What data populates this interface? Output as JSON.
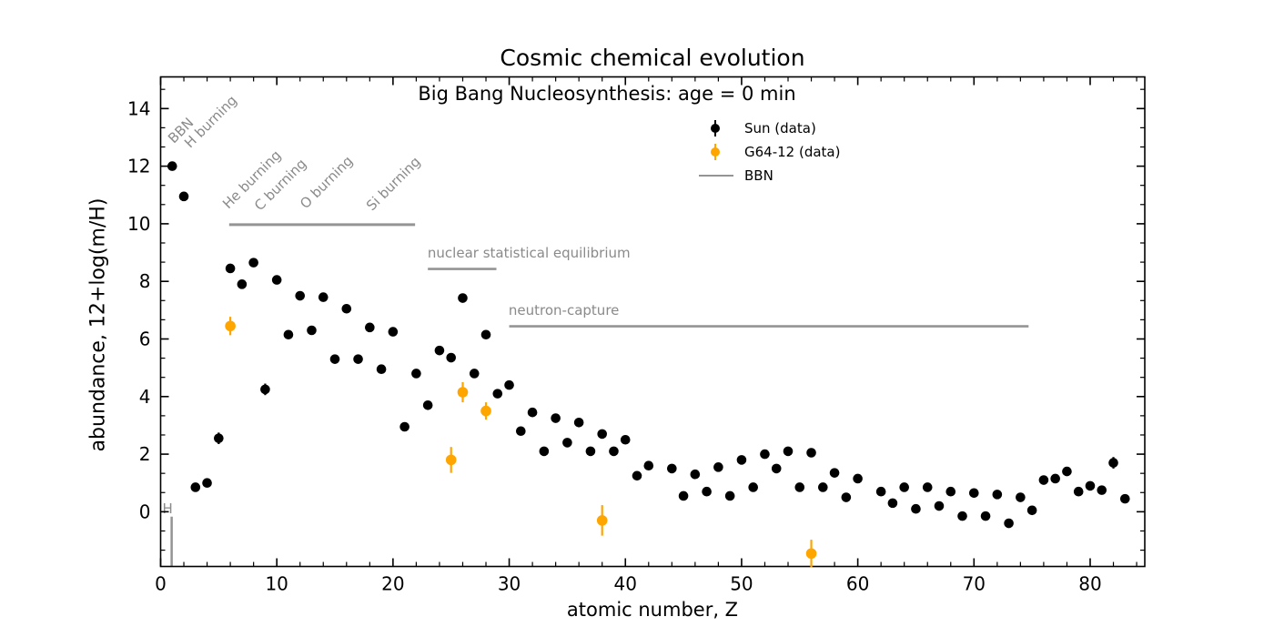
{
  "chart_data": {
    "type": "scatter",
    "title": "Cosmic chemical evolution",
    "subtitle": "Big Bang Nucleosynthesis: age = 0 min",
    "xlabel": "atomic number, Z",
    "ylabel": "abundance, 12+log(m/H)",
    "xlim": [
      0,
      84.7
    ],
    "ylim": [
      -1.9,
      15.1
    ],
    "x_ticks": [
      0,
      10,
      20,
      30,
      40,
      50,
      60,
      70,
      80
    ],
    "x_minor_step": 2,
    "y_ticks": [
      0,
      2,
      4,
      6,
      8,
      10,
      12,
      14
    ],
    "y_minor_step": 0.6667,
    "grid": false,
    "legend_position": "upper-right frameless",
    "colors": {
      "sun": "#000000",
      "g64": "#ffa500",
      "annotation_text": "#8a8a8a",
      "annotation_line": "#949494",
      "axis": "#000000"
    },
    "series": [
      {
        "name": "Sun (data)",
        "marker": "circle",
        "color": "#000000",
        "points": [
          [
            1,
            12.0,
            0
          ],
          [
            2,
            10.95,
            0
          ],
          [
            3,
            0.85,
            0
          ],
          [
            4,
            1.0,
            0
          ],
          [
            5,
            2.55,
            0.2
          ],
          [
            6,
            8.45,
            0
          ],
          [
            7,
            7.9,
            0
          ],
          [
            8,
            8.65,
            0
          ],
          [
            9,
            4.25,
            0.2
          ],
          [
            10,
            8.05,
            0
          ],
          [
            11,
            6.15,
            0
          ],
          [
            12,
            7.5,
            0
          ],
          [
            13,
            6.3,
            0
          ],
          [
            14,
            7.45,
            0
          ],
          [
            15,
            5.3,
            0
          ],
          [
            16,
            7.05,
            0
          ],
          [
            17,
            5.3,
            0
          ],
          [
            18,
            6.4,
            0
          ],
          [
            19,
            4.95,
            0
          ],
          [
            20,
            6.25,
            0
          ],
          [
            21,
            2.95,
            0
          ],
          [
            22,
            4.8,
            0
          ],
          [
            23,
            3.7,
            0
          ],
          [
            24,
            5.6,
            0
          ],
          [
            25,
            5.35,
            0
          ],
          [
            26,
            7.42,
            0.1
          ],
          [
            27,
            4.8,
            0
          ],
          [
            28,
            6.15,
            0
          ],
          [
            29,
            4.1,
            0
          ],
          [
            30,
            4.4,
            0
          ],
          [
            31,
            2.8,
            0
          ],
          [
            32,
            3.45,
            0
          ],
          [
            33,
            2.1,
            0
          ],
          [
            34,
            3.25,
            0
          ],
          [
            35,
            2.4,
            0
          ],
          [
            36,
            3.1,
            0
          ],
          [
            37,
            2.1,
            0
          ],
          [
            38,
            2.7,
            0
          ],
          [
            39,
            2.1,
            0
          ],
          [
            40,
            2.5,
            0
          ],
          [
            41,
            1.25,
            0
          ],
          [
            42,
            1.6,
            0
          ],
          [
            44,
            1.5,
            0
          ],
          [
            45,
            0.55,
            0
          ],
          [
            46,
            1.3,
            0
          ],
          [
            47,
            0.7,
            0
          ],
          [
            48,
            1.55,
            0
          ],
          [
            49,
            0.55,
            0
          ],
          [
            50,
            1.8,
            0
          ],
          [
            51,
            0.85,
            0
          ],
          [
            52,
            2.0,
            0
          ],
          [
            53,
            1.5,
            0
          ],
          [
            54,
            2.1,
            0
          ],
          [
            55,
            0.85,
            0
          ],
          [
            56,
            2.05,
            0
          ],
          [
            57,
            0.85,
            0
          ],
          [
            58,
            1.35,
            0
          ],
          [
            59,
            0.5,
            0
          ],
          [
            60,
            1.15,
            0
          ],
          [
            62,
            0.7,
            0
          ],
          [
            63,
            0.3,
            0
          ],
          [
            64,
            0.85,
            0
          ],
          [
            65,
            0.1,
            0
          ],
          [
            66,
            0.85,
            0
          ],
          [
            67,
            0.2,
            0
          ],
          [
            68,
            0.7,
            0
          ],
          [
            69,
            -0.15,
            0
          ],
          [
            70,
            0.65,
            0
          ],
          [
            71,
            -0.15,
            0
          ],
          [
            72,
            0.6,
            0
          ],
          [
            73,
            -0.4,
            0
          ],
          [
            74,
            0.5,
            0.15
          ],
          [
            75,
            0.05,
            0
          ],
          [
            76,
            1.1,
            0
          ],
          [
            77,
            1.15,
            0.12
          ],
          [
            78,
            1.4,
            0
          ],
          [
            79,
            0.7,
            0.15
          ],
          [
            80,
            0.9,
            0
          ],
          [
            81,
            0.75,
            0.15
          ],
          [
            82,
            1.7,
            0.2
          ],
          [
            83,
            0.45,
            0
          ]
        ]
      },
      {
        "name": "G64-12 (data)",
        "marker": "circle",
        "color": "#ffa500",
        "points": [
          [
            6,
            6.45,
            0.32
          ],
          [
            25,
            1.8,
            0.45
          ],
          [
            26,
            4.15,
            0.35
          ],
          [
            28,
            3.5,
            0.3
          ],
          [
            38,
            -0.3,
            0.53
          ],
          [
            56,
            -1.45,
            0.48
          ]
        ]
      },
      {
        "name": "BBN",
        "marker": "vline",
        "color": "#949494",
        "lines": [
          {
            "label": "H",
            "z": 0.95,
            "v_top": -0.17,
            "v_bottom": -1.9
          }
        ]
      }
    ],
    "annotations": {
      "stage_lines": [
        {
          "name": "burning-line",
          "z_from": 5.9,
          "z_to": 21.9,
          "v": 9.97,
          "width": 3
        },
        {
          "name": "nse-line",
          "z_from": 23.0,
          "z_to": 28.9,
          "v": 8.43,
          "width": 2.6
        },
        {
          "name": "neutron-capture-line",
          "z_from": 30.0,
          "z_to": 74.7,
          "v": 6.44,
          "width": 2.6
        }
      ],
      "rotated_labels": [
        {
          "text": "BBN",
          "z": 1.14,
          "v": 12.77,
          "rotation": 45
        },
        {
          "text": "H burning",
          "z": 2.55,
          "v": 12.61,
          "rotation": 45
        },
        {
          "text": "He burning",
          "z": 5.83,
          "v": 10.5,
          "rotation": 45
        },
        {
          "text": "C burning",
          "z": 8.57,
          "v": 10.43,
          "rotation": 45
        },
        {
          "text": "O burning",
          "z": 12.49,
          "v": 10.5,
          "rotation": 45
        },
        {
          "text": "Si burning",
          "z": 18.2,
          "v": 10.43,
          "rotation": 45
        }
      ],
      "flat_labels": [
        {
          "text": "nuclear statistical equilibrium",
          "z": 22.98,
          "v": 8.83
        },
        {
          "text": "neutron-capture",
          "z": 29.95,
          "v": 6.84
        }
      ]
    }
  },
  "legend": {
    "items": [
      {
        "label": "Sun (data)",
        "color": "#000000",
        "marker": "errorbar-dot"
      },
      {
        "label": "G64-12 (data)",
        "color": "#ffa500",
        "marker": "errorbar-dot"
      },
      {
        "label": "BBN",
        "color": "#949494",
        "marker": "line"
      }
    ]
  }
}
